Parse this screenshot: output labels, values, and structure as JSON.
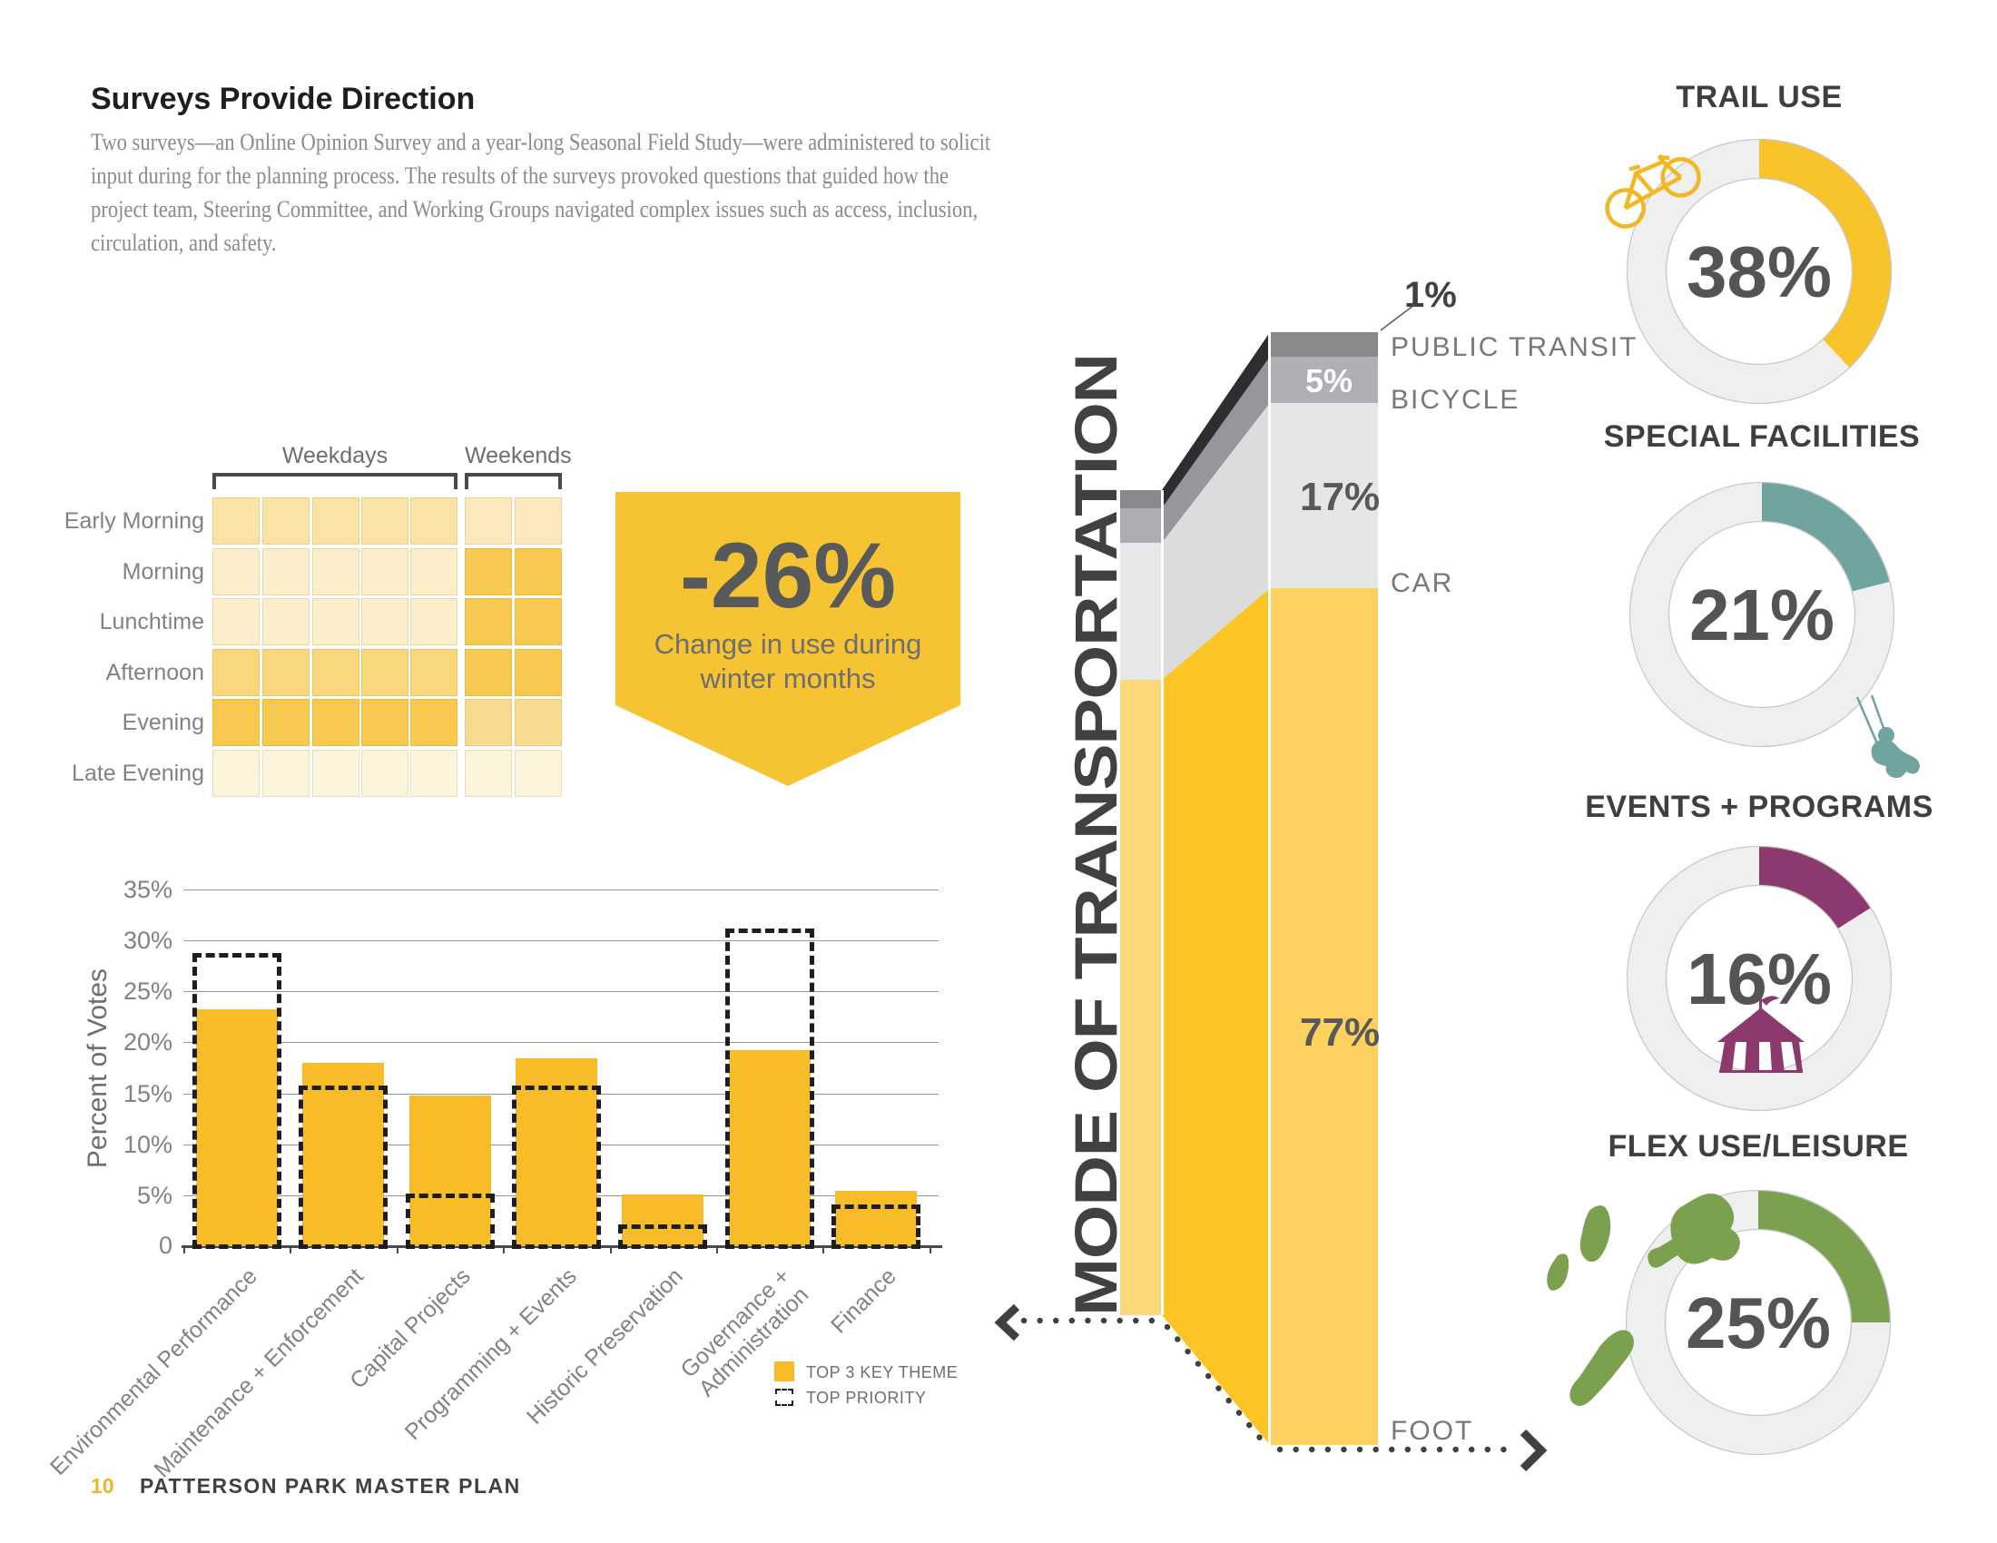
{
  "page": {
    "title": "Surveys Provide Direction",
    "intro_lines": [
      "Two surveys—an Online Opinion Survey and a year-long Seasonal Field Study—were administered to solicit",
      "input during for the planning process. The results of the surveys provoked questions that guided how the",
      "project team, Steering Committee, and Working Groups navigated complex issues such as access, inclusion,",
      "circulation, and safety."
    ],
    "footer": {
      "page_number": "10",
      "label": "PATTERSON PARK MASTER PLAN"
    }
  },
  "banner": {
    "value": "-26%",
    "line1": "Change in use during",
    "line2": "winter months",
    "bg": "#F6C332"
  },
  "chart_data": [
    {
      "id": "time-of-use-heatmap",
      "type": "heatmap",
      "col_groups": [
        {
          "label": "Weekdays",
          "cols": 5
        },
        {
          "label": "Weekends",
          "cols": 2
        }
      ],
      "rows": [
        "Early Morning",
        "Morning",
        "Lunchtime",
        "Afternoon",
        "Evening",
        "Late Evening"
      ],
      "levels": {
        "none": "#FDF4DC",
        "low": "#FCEDCB",
        "med_low": "#FAE3A4",
        "med_low_we": "#FBE8BC",
        "med": "#F9D77D",
        "med_we": "#F9DB8F",
        "high": "#F7C94E"
      },
      "cells": [
        [
          "med_low",
          "med_low",
          "med_low",
          "med_low",
          "med_low",
          "med_low_we",
          "med_low_we"
        ],
        [
          "low",
          "low",
          "low",
          "low",
          "low",
          "high",
          "high"
        ],
        [
          "low",
          "low",
          "low",
          "low",
          "low",
          "high",
          "high"
        ],
        [
          "med",
          "med",
          "med",
          "med",
          "med",
          "high",
          "high"
        ],
        [
          "high",
          "high",
          "high",
          "high",
          "high",
          "med_we",
          "med_we"
        ],
        [
          "none",
          "none",
          "none",
          "none",
          "none",
          "none",
          "none"
        ]
      ]
    },
    {
      "id": "survey-votes",
      "type": "bar",
      "ylabel": "Percent of Votes",
      "ylim": [
        0,
        35
      ],
      "yticks": [
        "35%",
        "30%",
        "25%",
        "20%",
        "15%",
        "10%",
        "5%",
        "0"
      ],
      "categories": [
        "Environmental Performance",
        "Maintenance + Enforcement",
        "Capital Projects",
        "Programming + Events",
        "Historic Preservation",
        "Governance + Administration",
        "Finance"
      ],
      "series": [
        {
          "name": "TOP 3 KEY THEME",
          "values": [
            23.2,
            18.0,
            14.8,
            18.4,
            5.1,
            19.2,
            5.4
          ],
          "color": "#F8BC28",
          "style": "solid"
        },
        {
          "name": "TOP PRIORITY",
          "values": [
            28.8,
            15.8,
            5.2,
            15.8,
            2.1,
            31.2,
            4.1
          ],
          "color": "#1E1E1F",
          "style": "dashed-outline"
        }
      ],
      "legend_position": "bottom-right",
      "grid": true
    },
    {
      "id": "mode-of-transportation",
      "type": "stacked-bar",
      "title": "MODE OF TRANSPORTATION",
      "title_color": "#414042",
      "label_color": "#77787B",
      "segments": [
        {
          "label": "FOOT",
          "pct": 77,
          "value_label": "77%",
          "front": "#FDD05F",
          "side": "#FDC425",
          "back": "#FCD878",
          "value_color": "#58595B"
        },
        {
          "label": "CAR",
          "pct": 17,
          "value_label": "17%",
          "front": "#E5E6E7",
          "side": "#DBDCDD",
          "back": "#E7E8E9",
          "value_color": "#58595B"
        },
        {
          "label": "BICYCLE",
          "pct": 5,
          "value_label": "5%",
          "front": "#AEB0B3",
          "side": "#95979A",
          "back": "#ABADB0",
          "value_color": "#FFFFFF"
        },
        {
          "label": "PUBLIC TRANSIT",
          "pct": 1,
          "value_label": "1%",
          "front": "#87898B",
          "side": "#2D2E30",
          "back": "#87898C",
          "value_color": "#414042"
        }
      ]
    },
    {
      "id": "use-donuts",
      "type": "pie",
      "track_color": "#EFEFF0",
      "ring_outline": "#C8C9CA",
      "value_color": "#545456",
      "items": [
        {
          "title": "TRAIL USE",
          "label": "38%",
          "pct": 38,
          "color": "#F9C32B",
          "icon": "bicycle-icon"
        },
        {
          "title": "SPECIAL FACILITIES",
          "label": "21%",
          "pct": 21,
          "color": "#6FA4A0",
          "icon": "swing-person-icon"
        },
        {
          "title": "EVENTS + PROGRAMS",
          "label": "16%",
          "pct": 16,
          "color": "#8C3A6D",
          "icon": "circus-tent-icon"
        },
        {
          "title": "FLEX USE/LEISURE",
          "label": "25%",
          "pct": 25,
          "color": "#7CA14E",
          "icon": "leisure-activities-icon"
        }
      ]
    }
  ]
}
